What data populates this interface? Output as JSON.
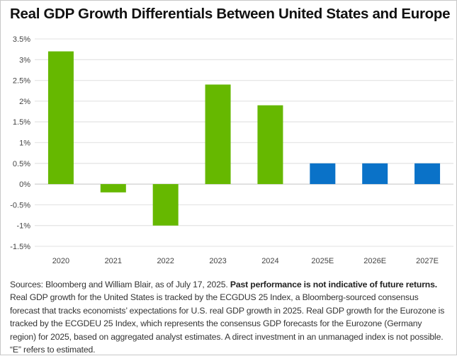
{
  "chart_data": {
    "type": "bar",
    "title": "Real GDP Growth Differentials Between United States and Europe",
    "categories": [
      "2020",
      "2021",
      "2022",
      "2023",
      "2024",
      "2025E",
      "2026E",
      "2027E"
    ],
    "values": [
      3.2,
      -0.2,
      -1.0,
      2.4,
      1.9,
      0.5,
      0.5,
      0.5
    ],
    "bar_colors": [
      "#66b800",
      "#66b800",
      "#66b800",
      "#66b800",
      "#66b800",
      "#0a72c8",
      "#0a72c8",
      "#0a72c8"
    ],
    "ylim": [
      -1.5,
      3.5
    ],
    "yticks": [
      3.5,
      3,
      2.5,
      2,
      1.5,
      1,
      0.5,
      0,
      -0.5,
      -1,
      -1.5
    ],
    "ytick_labels": [
      "3.5%",
      "3%",
      "2.5%",
      "2%",
      "1.5%",
      "1%",
      "0.5%",
      "0%",
      "-0.5%",
      "-1%",
      "-1.5%"
    ],
    "xlabel": "",
    "ylabel": "",
    "grid": true,
    "legend": "none"
  },
  "footnote": {
    "sources": "Sources: Bloomberg and William Blair, as of July 17, 2025. ",
    "disclaimer": "Past performance is not indicative of future returns.",
    "body": " Real GDP growth for the United States is tracked by the ECGDUS 25 Index, a Bloomberg-sourced consensus forecast that tracks economists’ expectations for U.S. real GDP growth in 2025. Real GDP growth for the Eurozone is tracked by the ECGDEU 25 Index, which represents the consensus GDP forecasts for the Eurozone (Germany region) for 2025, based on aggregated analyst estimates. A direct investment in an unmanaged index is not possible. “E” refers to estimated."
  }
}
